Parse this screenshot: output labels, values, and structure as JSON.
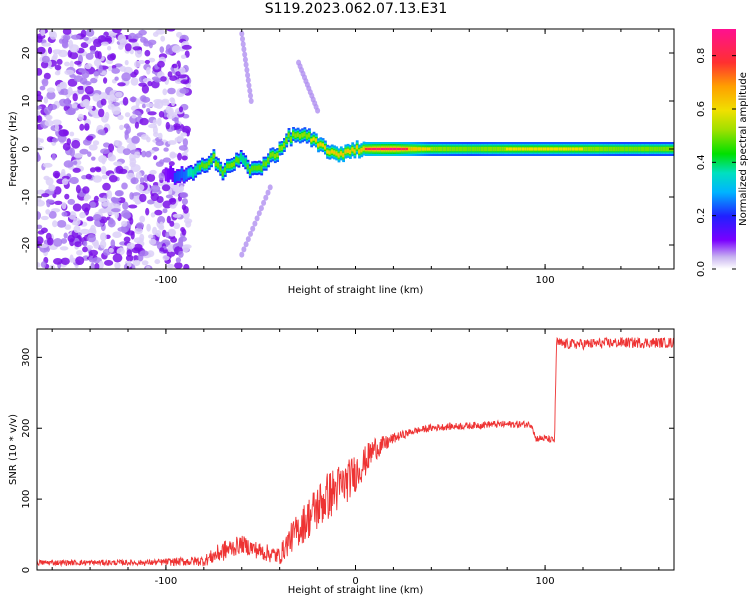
{
  "title": "S119.2023.062.07.13.E31",
  "colorbar": {
    "label": "Normalized spectral amplitude",
    "ticks": [
      "0.0",
      "0.2",
      "0.4",
      "0.6",
      "0.8"
    ],
    "range": [
      0,
      0.9
    ]
  },
  "chart_data": [
    {
      "type": "heatmap",
      "xlabel": "Height of straight line (km)",
      "ylabel": "Frequency (Hz)",
      "xlim": [
        -168,
        168
      ],
      "ylim": [
        -25,
        25
      ],
      "xticks": [
        "-100",
        "100"
      ],
      "yticks": [
        "20",
        "10",
        "0",
        "-10",
        "-20"
      ],
      "ridge": {
        "x": [
          -100,
          -90,
          -85,
          -80,
          -75,
          -70,
          -65,
          -60,
          -55,
          -50,
          -45,
          -40,
          -35,
          -30,
          -25,
          -20,
          -15,
          -10,
          -5,
          0,
          10,
          20,
          40,
          60,
          80,
          100,
          120,
          140,
          168
        ],
        "freq": [
          -5.5,
          -5.5,
          -5,
          -3.5,
          -1.5,
          -5,
          -3,
          -2,
          -4.5,
          -4,
          -1.5,
          -0.5,
          2.5,
          3,
          2.5,
          1,
          0,
          -1.5,
          -0.5,
          0,
          0,
          0,
          0,
          0,
          0,
          0,
          0,
          0,
          0
        ],
        "amplitude": [
          0.15,
          0.3,
          0.45,
          0.5,
          0.55,
          0.5,
          0.55,
          0.45,
          0.5,
          0.5,
          0.55,
          0.6,
          0.55,
          0.6,
          0.55,
          0.7,
          0.65,
          0.75,
          0.75,
          0.7,
          0.85,
          0.9,
          0.6,
          0.55,
          0.6,
          0.6,
          0.6,
          0.55,
          0.55
        ]
      },
      "noise_region": [
        -168,
        -88
      ]
    },
    {
      "type": "line",
      "xlabel": "Height of straight line (km)",
      "ylabel": "SNR (10 * v/v)",
      "xlim": [
        -168,
        168
      ],
      "ylim": [
        0,
        340
      ],
      "xticks": [
        "-100",
        "0",
        "100"
      ],
      "yticks": [
        "0",
        "100",
        "200",
        "300"
      ],
      "color": "#ee3333",
      "x": [
        -168,
        -140,
        -110,
        -80,
        -70,
        -60,
        -50,
        -40,
        -35,
        -30,
        -25,
        -20,
        -15,
        -10,
        -5,
        0,
        5,
        10,
        15,
        20,
        25,
        30,
        40,
        50,
        60,
        70,
        80,
        90,
        93,
        95,
        100,
        105,
        106,
        110,
        120,
        140,
        160,
        168
      ],
      "y": [
        10,
        10,
        10,
        12,
        25,
        35,
        25,
        18,
        40,
        55,
        70,
        85,
        100,
        110,
        120,
        135,
        150,
        170,
        175,
        185,
        190,
        195,
        200,
        202,
        203,
        205,
        205,
        205,
        205,
        185,
        185,
        182,
        320,
        318,
        318,
        320,
        320,
        320
      ],
      "amplitude": [
        8,
        8,
        8,
        15,
        30,
        25,
        25,
        25,
        40,
        50,
        60,
        70,
        70,
        70,
        60,
        55,
        45,
        35,
        25,
        15,
        12,
        10,
        10,
        10,
        10,
        10,
        10,
        10,
        10,
        10,
        10,
        10,
        15,
        15,
        15,
        15,
        15,
        15
      ]
    }
  ]
}
